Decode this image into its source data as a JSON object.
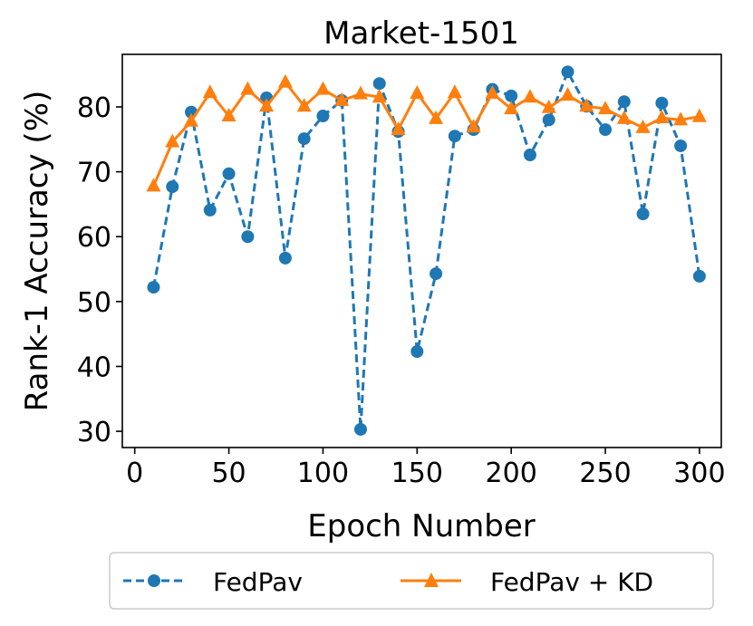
{
  "chart_data": {
    "type": "line",
    "title": "Market-1501",
    "xlabel": "Epoch Number",
    "ylabel": "Rank-1 Accuracy (%)",
    "xlim": [
      -6.6,
      311.6
    ],
    "ylim": [
      27.5,
      88.1
    ],
    "xticks": [
      0,
      50,
      100,
      150,
      200,
      250,
      300
    ],
    "yticks": [
      30,
      40,
      50,
      60,
      70,
      80
    ],
    "grid": false,
    "legend_placement": "bottom-outside",
    "x": [
      10,
      20,
      30,
      40,
      50,
      60,
      70,
      80,
      90,
      100,
      110,
      120,
      130,
      140,
      150,
      160,
      170,
      180,
      190,
      200,
      210,
      220,
      230,
      240,
      250,
      260,
      270,
      280,
      290,
      300
    ],
    "series": [
      {
        "name": "FedPav",
        "color": "#1f77b4",
        "linestyle": "dashed",
        "marker": "circle",
        "values": [
          52.2,
          67.7,
          79.2,
          64.1,
          69.7,
          60.0,
          81.4,
          56.7,
          75.1,
          78.6,
          81.0,
          30.3,
          83.6,
          76.2,
          42.3,
          54.3,
          75.5,
          76.5,
          82.7,
          81.7,
          72.6,
          78.0,
          85.4,
          80.1,
          76.5,
          80.8,
          63.5,
          80.6,
          74.0,
          53.9
        ]
      },
      {
        "name": "FedPav + KD",
        "color": "#ff7f0e",
        "linestyle": "solid",
        "marker": "triangle",
        "values": [
          67.8,
          74.6,
          77.8,
          82.2,
          78.6,
          82.7,
          80.1,
          83.8,
          80.1,
          82.7,
          81.0,
          82.0,
          81.5,
          76.5,
          82.1,
          78.2,
          82.2,
          76.9,
          82.1,
          79.7,
          81.5,
          79.9,
          81.8,
          80.1,
          79.7,
          78.2,
          76.8,
          78.3,
          78.0,
          78.5
        ]
      }
    ]
  }
}
